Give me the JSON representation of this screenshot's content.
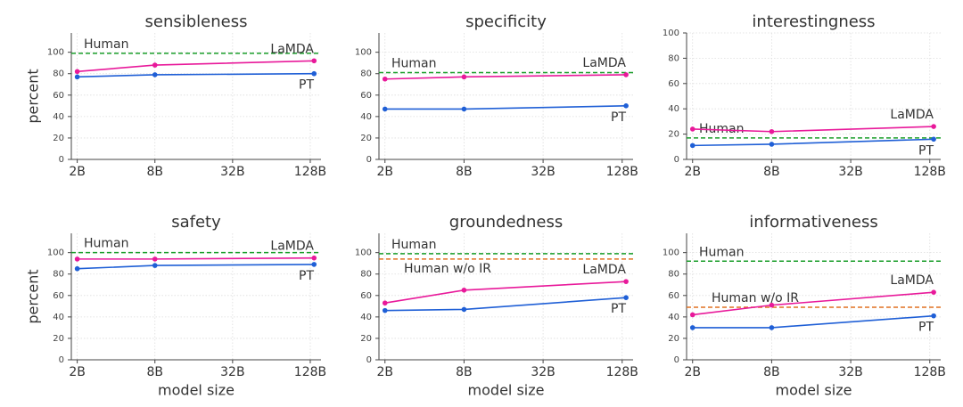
{
  "chart_data": [
    {
      "type": "line",
      "title": "sensibleness",
      "ylabel": "percent",
      "xlog": true,
      "grid": true,
      "x": [
        2,
        8,
        137
      ],
      "xlim": [
        1.8,
        155
      ],
      "xticks": [
        {
          "value": 2,
          "label": "2B"
        },
        {
          "value": 8,
          "label": "8B"
        },
        {
          "value": 32,
          "label": "32B"
        },
        {
          "value": 128,
          "label": "128B"
        }
      ],
      "ylim": [
        0,
        118
      ],
      "yticks": [
        0,
        20,
        40,
        60,
        80,
        100
      ],
      "series": [
        {
          "name": "LaMDA",
          "color": "#e8199a",
          "values": [
            82,
            88,
            92
          ]
        },
        {
          "name": "PT",
          "color": "#1f5fd6",
          "values": [
            77,
            79,
            80
          ]
        }
      ],
      "hlines": [
        {
          "name": "Human",
          "color": "#1a9e2a",
          "value": 99
        }
      ]
    },
    {
      "type": "line",
      "title": "specificity",
      "xlog": true,
      "grid": true,
      "x": [
        2,
        8,
        137
      ],
      "xlim": [
        1.8,
        155
      ],
      "xticks": [
        {
          "value": 2,
          "label": "2B"
        },
        {
          "value": 8,
          "label": "8B"
        },
        {
          "value": 32,
          "label": "32B"
        },
        {
          "value": 128,
          "label": "128B"
        }
      ],
      "ylim": [
        0,
        118
      ],
      "yticks": [
        0,
        20,
        40,
        60,
        80,
        100
      ],
      "series": [
        {
          "name": "LaMDA",
          "color": "#e8199a",
          "values": [
            75,
            77,
            79
          ]
        },
        {
          "name": "PT",
          "color": "#1f5fd6",
          "values": [
            47,
            47,
            50
          ]
        }
      ],
      "hlines": [
        {
          "name": "Human",
          "color": "#1a9e2a",
          "value": 81
        }
      ]
    },
    {
      "type": "line",
      "title": "interestingness",
      "xlog": true,
      "grid": true,
      "x": [
        2,
        8,
        137
      ],
      "xlim": [
        1.8,
        155
      ],
      "xticks": [
        {
          "value": 2,
          "label": "2B"
        },
        {
          "value": 8,
          "label": "8B"
        },
        {
          "value": 32,
          "label": "32B"
        },
        {
          "value": 128,
          "label": "128B"
        }
      ],
      "ylim": [
        0,
        100
      ],
      "yticks": [
        0,
        20,
        40,
        60,
        80,
        100
      ],
      "series": [
        {
          "name": "LaMDA",
          "color": "#e8199a",
          "values": [
            24,
            22,
            26
          ]
        },
        {
          "name": "PT",
          "color": "#1f5fd6",
          "values": [
            11,
            12,
            16
          ]
        }
      ],
      "hlines": [
        {
          "name": "Human",
          "color": "#1a9e2a",
          "value": 17
        }
      ]
    },
    {
      "type": "line",
      "title": "safety",
      "ylabel": "percent",
      "xlabel": "model size",
      "xlog": true,
      "grid": true,
      "x": [
        2,
        8,
        137
      ],
      "xlim": [
        1.8,
        155
      ],
      "xticks": [
        {
          "value": 2,
          "label": "2B"
        },
        {
          "value": 8,
          "label": "8B"
        },
        {
          "value": 32,
          "label": "32B"
        },
        {
          "value": 128,
          "label": "128B"
        }
      ],
      "ylim": [
        0,
        118
      ],
      "yticks": [
        0,
        20,
        40,
        60,
        80,
        100
      ],
      "series": [
        {
          "name": "LaMDA",
          "color": "#e8199a",
          "values": [
            94,
            94,
            95
          ]
        },
        {
          "name": "PT",
          "color": "#1f5fd6",
          "values": [
            85,
            88,
            89
          ]
        }
      ],
      "hlines": [
        {
          "name": "Human",
          "color": "#1a9e2a",
          "value": 100
        }
      ]
    },
    {
      "type": "line",
      "title": "groundedness",
      "xlabel": "model size",
      "xlog": true,
      "grid": true,
      "x": [
        2,
        8,
        137
      ],
      "xlim": [
        1.8,
        155
      ],
      "xticks": [
        {
          "value": 2,
          "label": "2B"
        },
        {
          "value": 8,
          "label": "8B"
        },
        {
          "value": 32,
          "label": "32B"
        },
        {
          "value": 128,
          "label": "128B"
        }
      ],
      "ylim": [
        0,
        118
      ],
      "yticks": [
        0,
        20,
        40,
        60,
        80,
        100
      ],
      "series": [
        {
          "name": "LaMDA",
          "color": "#e8199a",
          "values": [
            53,
            65,
            73
          ]
        },
        {
          "name": "PT",
          "color": "#1f5fd6",
          "values": [
            46,
            47,
            58
          ]
        }
      ],
      "hlines": [
        {
          "name": "Human",
          "color": "#1a9e2a",
          "value": 99
        },
        {
          "name": "Human w/o IR",
          "color": "#e07020",
          "value": 94
        }
      ]
    },
    {
      "type": "line",
      "title": "informativeness",
      "xlabel": "model size",
      "xlog": true,
      "grid": true,
      "x": [
        2,
        8,
        137
      ],
      "xlim": [
        1.8,
        155
      ],
      "xticks": [
        {
          "value": 2,
          "label": "2B"
        },
        {
          "value": 8,
          "label": "8B"
        },
        {
          "value": 32,
          "label": "32B"
        },
        {
          "value": 128,
          "label": "128B"
        }
      ],
      "ylim": [
        0,
        118
      ],
      "yticks": [
        0,
        20,
        40,
        60,
        80,
        100
      ],
      "series": [
        {
          "name": "LaMDA",
          "color": "#e8199a",
          "values": [
            42,
            51,
            63
          ]
        },
        {
          "name": "PT",
          "color": "#1f5fd6",
          "values": [
            30,
            30,
            41
          ]
        }
      ],
      "hlines": [
        {
          "name": "Human",
          "color": "#1a9e2a",
          "value": 92
        },
        {
          "name": "Human w/o IR",
          "color": "#e07020",
          "value": 49
        }
      ]
    }
  ]
}
